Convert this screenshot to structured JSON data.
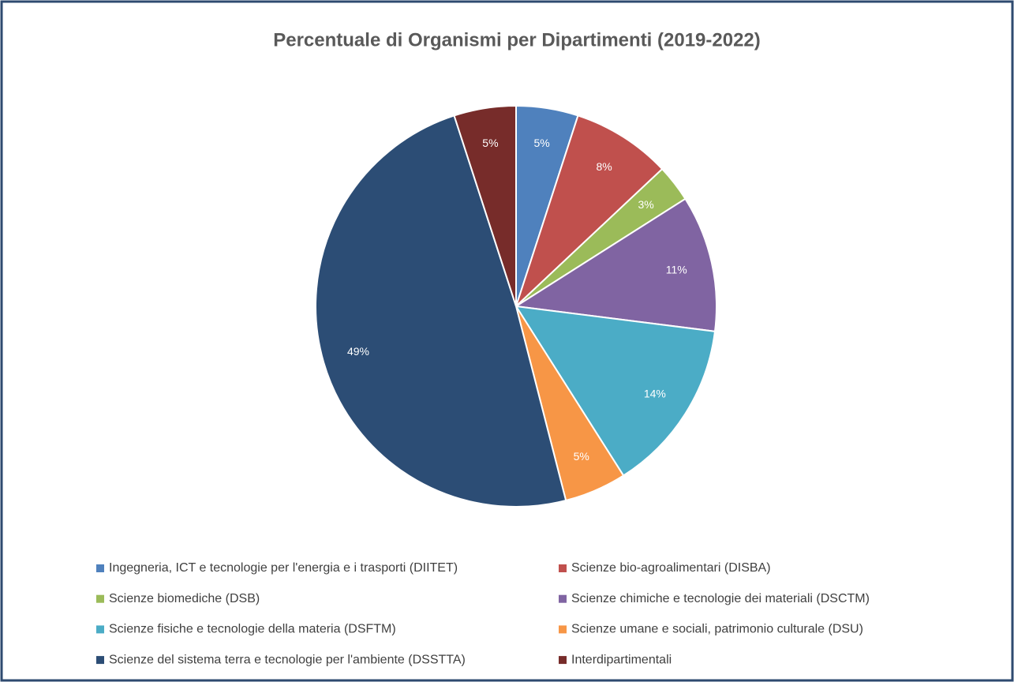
{
  "chart_data": {
    "type": "pie",
    "title": "Percentuale di Organismi per Dipartimenti (2019-2022)",
    "categories": [
      "Ingegneria, ICT e tecnologie per l'energia e i trasporti (DIITET)",
      "Scienze bio-agroalimentari (DISBA)",
      "Scienze biomediche (DSB)",
      "Scienze chimiche e tecnologie dei materiali (DSCTM)",
      "Scienze fisiche e tecnologie della materia (DSFTM)",
      "Scienze umane e sociali, patrimonio culturale (DSU)",
      "Scienze del sistema terra e tecnologie per l'ambiente (DSSTTA)",
      "Interdipartimentali"
    ],
    "values": [
      5,
      8,
      3,
      11,
      14,
      5,
      49,
      5
    ],
    "value_labels": [
      "5%",
      "8%",
      "3%",
      "11%",
      "14%",
      "5%",
      "49%",
      "5%"
    ],
    "colors": [
      "#4f81bd",
      "#c0504d",
      "#9bbb59",
      "#8064a2",
      "#4bacc6",
      "#f79646",
      "#2c4d75",
      "#772c2a"
    ],
    "legend": "bottom"
  }
}
